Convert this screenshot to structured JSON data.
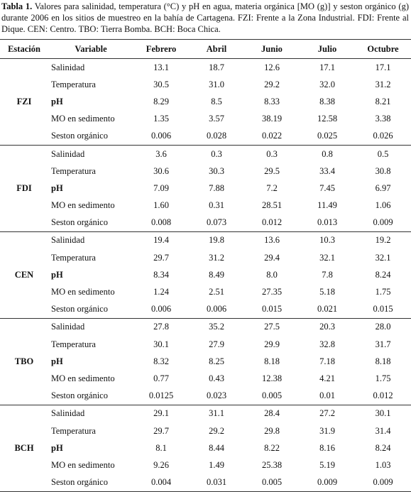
{
  "caption": {
    "label": "Tabla 1.",
    "text": "Valores para salinidad, temperatura (°C) y  pH en agua, materia orgánica [MO (g)] y seston orgánico (g) durante 2006 en los sitios de muestreo en la bahía de Cartagena. FZI: Frente a la Zona Industrial. FDI: Frente al Dique. CEN: Centro. TBO: Tierra Bomba. BCH: Boca Chica."
  },
  "table": {
    "columns": [
      "Estación",
      "Variable",
      "Febrero",
      "Abril",
      "Junio",
      "Julio",
      "Octubre"
    ],
    "groups": [
      {
        "station": "FZI",
        "rows": [
          {
            "variable": "Salinidad",
            "values": [
              "13.1",
              "18.7",
              "12.6",
              "17.1",
              "17.1"
            ]
          },
          {
            "variable": "Temperatura",
            "values": [
              "30.5",
              "31.0",
              "29.2",
              "32.0",
              "31.2"
            ]
          },
          {
            "variable": "pH",
            "values": [
              "8.29",
              "8.5",
              "8.33",
              "8.38",
              "8.21"
            ]
          },
          {
            "variable": "MO en sedimento",
            "values": [
              "1.35",
              "3.57",
              "38.19",
              "12.58",
              "3.38"
            ]
          },
          {
            "variable": "Seston orgánico",
            "values": [
              "0.006",
              "0.028",
              "0.022",
              "0.025",
              "0.026"
            ]
          }
        ]
      },
      {
        "station": "FDI",
        "rows": [
          {
            "variable": "Salinidad",
            "values": [
              "3.6",
              "0.3",
              "0.3",
              "0.8",
              "0.5"
            ]
          },
          {
            "variable": "Temperatura",
            "values": [
              "30.6",
              "30.3",
              "29.5",
              "33.4",
              "30.8"
            ]
          },
          {
            "variable": "pH",
            "values": [
              "7.09",
              "7.88",
              "7.2",
              "7.45",
              "6.97"
            ]
          },
          {
            "variable": "MO en sedimento",
            "values": [
              "1.60",
              "0.31",
              "28.51",
              "11.49",
              "1.06"
            ]
          },
          {
            "variable": "Seston orgánico",
            "values": [
              "0.008",
              "0.073",
              "0.012",
              "0.013",
              "0.009"
            ]
          }
        ]
      },
      {
        "station": "CEN",
        "rows": [
          {
            "variable": "Salinidad",
            "values": [
              "19.4",
              "19.8",
              "13.6",
              "10.3",
              "19.2"
            ]
          },
          {
            "variable": "Temperatura",
            "values": [
              "29.7",
              "31.2",
              "29.4",
              "32.1",
              "32.1"
            ]
          },
          {
            "variable": "pH",
            "values": [
              "8.34",
              "8.49",
              "8.0",
              "7.8",
              "8.24"
            ]
          },
          {
            "variable": "MO en sedimento",
            "values": [
              "1.24",
              "2.51",
              "27.35",
              "5.18",
              "1.75"
            ]
          },
          {
            "variable": "Seston orgánico",
            "values": [
              "0.006",
              "0.006",
              "0.015",
              "0.021",
              "0.015"
            ]
          }
        ]
      },
      {
        "station": "TBO",
        "rows": [
          {
            "variable": "Salinidad",
            "values": [
              "27.8",
              "35.2",
              "27.5",
              "20.3",
              "28.0"
            ]
          },
          {
            "variable": "Temperatura",
            "values": [
              "30.1",
              "27.9",
              "29.9",
              "32.8",
              "31.7"
            ]
          },
          {
            "variable": "pH",
            "values": [
              "8.32",
              "8.25",
              "8.18",
              "7.18",
              "8.18"
            ]
          },
          {
            "variable": "MO en sedimento",
            "values": [
              "0.77",
              "0.43",
              "12.38",
              "4.21",
              "1.75"
            ]
          },
          {
            "variable": "Seston orgánico",
            "values": [
              "0.0125",
              "0.023",
              "0.005",
              "0.01",
              "0.012"
            ]
          }
        ]
      },
      {
        "station": "BCH",
        "rows": [
          {
            "variable": "Salinidad",
            "values": [
              "29.1",
              "31.1",
              "28.4",
              "27.2",
              "30.1"
            ]
          },
          {
            "variable": "Temperatura",
            "values": [
              "29.7",
              "29.2",
              "29.8",
              "31.9",
              "31.4"
            ]
          },
          {
            "variable": "pH",
            "values": [
              "8.1",
              "8.44",
              "8.22",
              "8.16",
              "8.24"
            ]
          },
          {
            "variable": "MO en sedimento",
            "values": [
              "9.26",
              "1.49",
              "25.38",
              "5.19",
              "1.03"
            ]
          },
          {
            "variable": "Seston orgánico",
            "values": [
              "0.004",
              "0.031",
              "0.005",
              "0.009",
              "0.009"
            ]
          }
        ]
      }
    ]
  }
}
